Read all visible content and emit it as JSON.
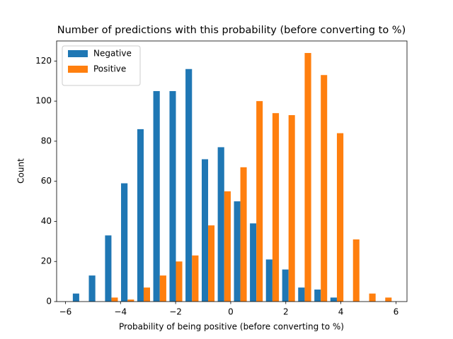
{
  "chart_data": {
    "type": "histogram",
    "title": "Number of predictions with this probability (before converting to %)",
    "x_label": "Probability of being positive (before converting to %)",
    "y_label": "Count",
    "bins": [
      -5.79,
      -5.21,
      -4.62,
      -4.04,
      -3.45,
      -2.87,
      -2.28,
      -1.7,
      -1.11,
      -0.53,
      0.06,
      0.64,
      1.22,
      1.81,
      2.39,
      2.98,
      3.56,
      4.15,
      4.73,
      5.32,
      5.9
    ],
    "series": [
      {
        "name": "Negative",
        "color": "#1f77b4",
        "values": [
          4,
          13,
          33,
          59,
          86,
          105,
          105,
          116,
          71,
          77,
          50,
          39,
          21,
          16,
          7,
          6,
          2,
          0,
          0,
          0
        ]
      },
      {
        "name": "Positive",
        "color": "#ff7f0e",
        "values": [
          0,
          0,
          2,
          1,
          7,
          13,
          20,
          23,
          38,
          55,
          67,
          100,
          94,
          93,
          124,
          113,
          84,
          31,
          4,
          2
        ]
      }
    ],
    "xlim": [
      -6.32,
      6.4
    ],
    "ylim": [
      0,
      130
    ],
    "xticks": [
      {
        "value": -6,
        "label": "−6"
      },
      {
        "value": -4,
        "label": "−4"
      },
      {
        "value": -2,
        "label": "−2"
      },
      0,
      2,
      4,
      6
    ],
    "yticks": [
      0,
      20,
      40,
      60,
      80,
      100,
      120
    ],
    "legend": "upper left",
    "grid": false
  }
}
